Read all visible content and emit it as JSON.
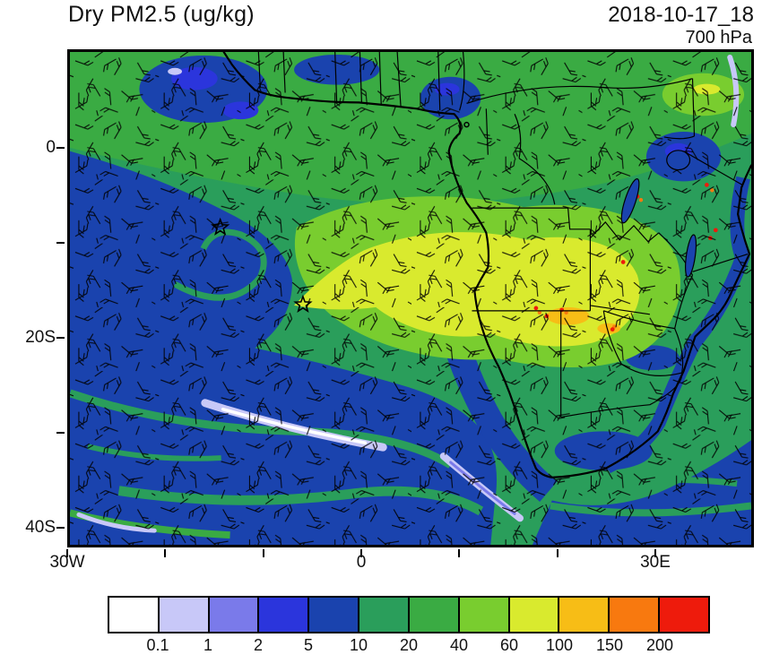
{
  "header": {
    "title": "Dry PM2.5 (ug/kg)",
    "datetime": "2018-10-17_18",
    "level": "700 hPa"
  },
  "map": {
    "y_axis_labels": [
      "0",
      "20S",
      "40S"
    ],
    "x_axis_labels": [
      "30W",
      "0",
      "30E"
    ]
  },
  "colorbar": {
    "tick_labels": [
      "0.1",
      "1",
      "2",
      "5",
      "10",
      "20",
      "40",
      "60",
      "100",
      "150",
      "200"
    ],
    "colors": [
      "#ffffff",
      "#c8c8f8",
      "#7a7aea",
      "#2b35dc",
      "#1a43ae",
      "#2a9e5b",
      "#3aab43",
      "#79cd2f",
      "#d9ea2e",
      "#f7bd16",
      "#f8790f",
      "#ee1b0c"
    ]
  },
  "chart_data": {
    "type": "heatmap",
    "title": "Dry PM2.5 (ug/kg)",
    "variable": "Dry PM2.5",
    "units": "ug/kg",
    "valid_time": "2018-10-17_18",
    "pressure_level": "700 hPa",
    "region": "Southern Africa and South Atlantic",
    "x_axis": {
      "type": "longitude",
      "tick_labels": [
        "30W",
        "0",
        "30E"
      ],
      "range_deg": [
        -30,
        40
      ]
    },
    "y_axis": {
      "type": "latitude",
      "tick_labels": [
        "0",
        "20S",
        "40S"
      ],
      "range_deg": [
        -42,
        10
      ]
    },
    "color_levels": [
      0.1,
      1,
      2,
      5,
      10,
      20,
      40,
      60,
      100,
      150,
      200
    ],
    "color_hex": [
      "#ffffff",
      "#c8c8f8",
      "#7a7aea",
      "#2b35dc",
      "#1a43ae",
      "#2a9e5b",
      "#3aab43",
      "#79cd2f",
      "#d9ea2e",
      "#f7bd16",
      "#f8790f",
      "#ee1b0c"
    ],
    "overlays": [
      "wind barbs",
      "coastlines",
      "country borders",
      "lakes"
    ],
    "station_markers": [
      {
        "symbol": "star",
        "approx_lon": -14.4,
        "approx_lat": -8.3
      },
      {
        "symbol": "star",
        "approx_lon": -5.8,
        "approx_lat": -16.0
      }
    ],
    "features": [
      "Elevated biomass-burning plume (60-150 ug/kg) stretching from Angola/DRC westward over the South Atlantic",
      "Background 10-40 ug/kg over tropical Africa and the Gulf of Guinea",
      "Low values (<10 ug/kg) over the subtropical South Atlantic and Southern Ocean",
      "Isolated >150-200 ug/kg hotspots over Zambia/Zimbabwe and East Africa"
    ]
  }
}
